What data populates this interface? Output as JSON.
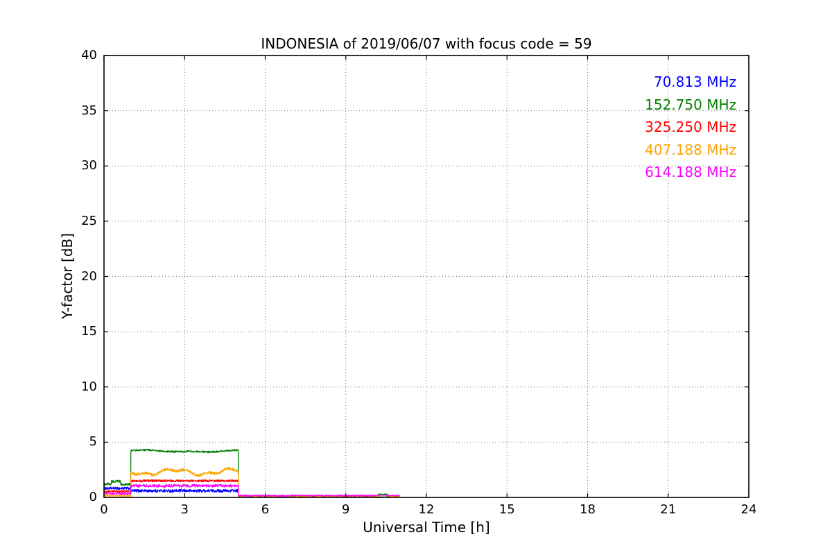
{
  "figure": {
    "background": "#ffffff",
    "frame_color": "#000000",
    "grid_style": "dotted",
    "grid_color": "#777777"
  },
  "chart_data": {
    "type": "line",
    "title": "INDONESIA of 2019/06/07 with focus code = 59",
    "xlabel": "Universal Time [h]",
    "ylabel": "Y-factor [dB]",
    "xlim": [
      0,
      24
    ],
    "ylim": [
      0,
      40
    ],
    "xticks": [
      0,
      3,
      6,
      9,
      12,
      15,
      18,
      21,
      24
    ],
    "yticks": [
      0,
      5,
      10,
      15,
      20,
      25,
      30,
      35,
      40
    ],
    "grid": "dotted both axes at major ticks",
    "legend_position": "upper right, colored text only (no marker lines)",
    "series": [
      {
        "name": "70.813 MHz",
        "color": "#0000ff",
        "segments": [
          {
            "t": [
              0,
              1
            ],
            "level": 0.82,
            "amp": 0.12
          },
          {
            "t": [
              1,
              5
            ],
            "level": 0.6,
            "amp": 0.13
          },
          {
            "t": [
              5,
              11
            ],
            "level": 0.11,
            "amp": 0.04
          }
        ]
      },
      {
        "name": "152.750 MHz",
        "color": "#008000",
        "segments": [
          {
            "t": [
              0,
              0.28
            ],
            "level": 1.22,
            "amp": 0.11
          },
          {
            "t": [
              0.28,
              0.62
            ],
            "level": 1.45,
            "amp": 0.12
          },
          {
            "t": [
              0.62,
              1
            ],
            "level": 1.18,
            "amp": 0.1
          },
          {
            "t": [
              1,
              5
            ],
            "level": 4.2,
            "amp": 0.08,
            "wander": [
              0.07,
              1.4
            ]
          },
          {
            "t": [
              5,
              10.2
            ],
            "level": 0.14,
            "amp": 0.04
          },
          {
            "t": [
              10.2,
              10.55
            ],
            "level": 0.27,
            "amp": 0.05
          },
          {
            "t": [
              10.55,
              11
            ],
            "level": 0.14,
            "amp": 0.04
          }
        ]
      },
      {
        "name": "325.250 MHz",
        "color": "#ff0000",
        "segments": [
          {
            "t": [
              0,
              1
            ],
            "level": 0.55,
            "amp": 0.09
          },
          {
            "t": [
              1,
              5
            ],
            "level": 1.5,
            "amp": 0.1
          },
          {
            "t": [
              5,
              11
            ],
            "level": 0.12,
            "amp": 0.04
          }
        ]
      },
      {
        "name": "407.188 MHz",
        "color": "#ffa500",
        "segments": [
          {
            "t": [
              0,
              1
            ],
            "level": 0.14,
            "amp": 0.07
          },
          {
            "t": [
              1,
              5
            ],
            "level": 2.3,
            "amp": 0.13,
            "wander": [
              0.22,
              3.0
            ]
          },
          {
            "t": [
              5,
              11
            ],
            "level": 0.13,
            "amp": 0.04
          }
        ]
      },
      {
        "name": "614.188 MHz",
        "color": "#ff00ff",
        "segments": [
          {
            "t": [
              0,
              1
            ],
            "level": 0.36,
            "amp": 0.1
          },
          {
            "t": [
              1,
              5
            ],
            "level": 1.05,
            "amp": 0.13
          },
          {
            "t": [
              5,
              11
            ],
            "level": 0.17,
            "amp": 0.06
          }
        ]
      }
    ],
    "artifact": {
      "note": "short gray mark inside low band near 10.3 h",
      "color": "#b3b3b3",
      "t": [
        10.25,
        10.52
      ],
      "level": 0.1
    },
    "data_extent_hours": [
      0,
      11
    ]
  }
}
